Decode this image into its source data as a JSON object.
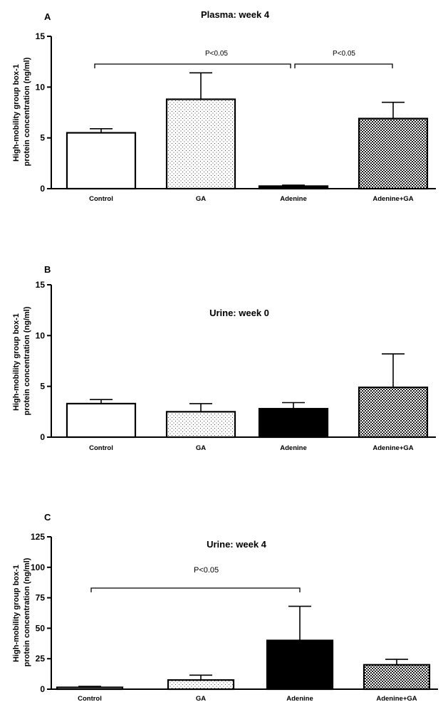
{
  "chart_data": [
    {
      "type": "bar",
      "panel": "A",
      "title": "Plasma: week 4",
      "ylabel_lines": [
        "High-mobility group box-1",
        "protein concentration (ng/ml)"
      ],
      "categories": [
        "Control",
        "GA",
        "Adenine",
        "Adenine+GA"
      ],
      "values": [
        5.5,
        8.8,
        0.25,
        6.9
      ],
      "errors": [
        0.4,
        2.6,
        0.1,
        1.6
      ],
      "ylim": [
        0,
        15
      ],
      "yticks": [
        0,
        5,
        10,
        15
      ],
      "bar_fills": [
        "white",
        "sparse-dots",
        "black",
        "checker"
      ],
      "significance": [
        {
          "from": 0,
          "to": 2,
          "label": "P<0.05"
        },
        {
          "from": 2,
          "to": 3,
          "label": "P<0.05"
        }
      ]
    },
    {
      "type": "bar",
      "panel": "B",
      "title": "Urine: week 0",
      "ylabel_lines": [
        "High-mobility group box-1",
        "protein concentration (ng/ml)"
      ],
      "categories": [
        "Control",
        "GA",
        "Adenine",
        "Adenine+GA"
      ],
      "values": [
        3.3,
        2.5,
        2.8,
        4.9
      ],
      "errors": [
        0.4,
        0.8,
        0.6,
        3.3
      ],
      "ylim": [
        0,
        15
      ],
      "yticks": [
        0,
        5,
        10,
        15
      ],
      "bar_fills": [
        "white",
        "sparse-dots",
        "black",
        "checker"
      ],
      "significance": []
    },
    {
      "type": "bar",
      "panel": "C",
      "title": "Urine: week 4",
      "ylabel_lines": [
        "High-mobility group box-1",
        "protein concentration (ng/ml)"
      ],
      "categories": [
        "Control",
        "GA",
        "Adenine",
        "Adenine+GA"
      ],
      "values": [
        1.5,
        7.5,
        40,
        20
      ],
      "errors": [
        0.8,
        4,
        28,
        4.5
      ],
      "ylim": [
        0,
        125
      ],
      "yticks": [
        0,
        25,
        50,
        75,
        100,
        125
      ],
      "bar_fills": [
        "white",
        "sparse-dots",
        "black",
        "checker"
      ],
      "significance": [
        {
          "from": 0,
          "to": 2,
          "label": "P<0.05"
        }
      ]
    }
  ]
}
